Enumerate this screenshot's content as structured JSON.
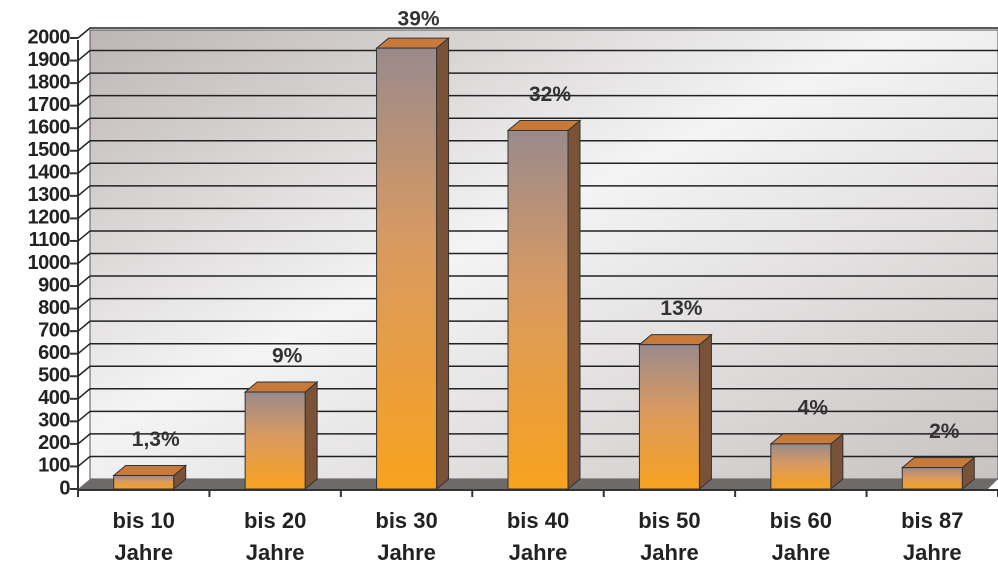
{
  "chart_data": {
    "type": "bar3d",
    "categories": [
      "bis 10 Jahre",
      "bis 20 Jahre",
      "bis 30 Jahre",
      "bis 40 Jahre",
      "bis 50 Jahre",
      "bis 60 Jahre",
      "bis 87 Jahre"
    ],
    "values": [
      60,
      430,
      1955,
      1590,
      640,
      200,
      95
    ],
    "shares": {
      "values": [
        1.3,
        9,
        39,
        32,
        13,
        4,
        2
      ],
      "value_labels": [
        "1,3%",
        "9%",
        "39%",
        "32%",
        "13%",
        "4%",
        "2%"
      ]
    },
    "ylim": [
      0,
      2000
    ],
    "yticks": [
      0,
      100,
      200,
      300,
      400,
      500,
      600,
      700,
      800,
      900,
      1000,
      1100,
      1200,
      1300,
      1400,
      1500,
      1600,
      1700,
      1800,
      1900,
      2000
    ],
    "grid": true,
    "color": "#f5a020"
  }
}
